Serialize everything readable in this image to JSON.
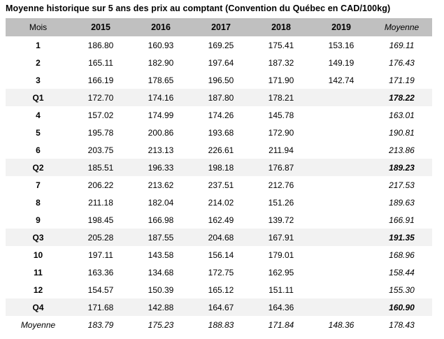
{
  "colors": {
    "page_bg": "#ffffff",
    "text": "#000000",
    "header_bg": "#c0c0c0",
    "quarter_row_bg": "#f2f2f2"
  },
  "chart_data": {
    "type": "table",
    "title": "Moyenne historique sur 5 ans des prix au comptant (Convention du Québec en CAD/100kg)",
    "columns": [
      "Mois",
      "2015",
      "2016",
      "2017",
      "2018",
      "2019",
      "Moyenne"
    ],
    "rows": [
      {
        "label": "1",
        "type": "month",
        "values": [
          "186.80",
          "160.93",
          "169.25",
          "175.41",
          "153.16",
          "169.11"
        ]
      },
      {
        "label": "2",
        "type": "month",
        "values": [
          "165.11",
          "182.90",
          "197.64",
          "187.32",
          "149.19",
          "176.43"
        ]
      },
      {
        "label": "3",
        "type": "month",
        "values": [
          "166.19",
          "178.65",
          "196.50",
          "171.90",
          "142.74",
          "171.19"
        ]
      },
      {
        "label": "Q1",
        "type": "quarter",
        "values": [
          "172.70",
          "174.16",
          "187.80",
          "178.21",
          "",
          "178.22"
        ]
      },
      {
        "label": "4",
        "type": "month",
        "values": [
          "157.02",
          "174.99",
          "174.26",
          "145.78",
          "",
          "163.01"
        ]
      },
      {
        "label": "5",
        "type": "month",
        "values": [
          "195.78",
          "200.86",
          "193.68",
          "172.90",
          "",
          "190.81"
        ]
      },
      {
        "label": "6",
        "type": "month",
        "values": [
          "203.75",
          "213.13",
          "226.61",
          "211.94",
          "",
          "213.86"
        ]
      },
      {
        "label": "Q2",
        "type": "quarter",
        "values": [
          "185.51",
          "196.33",
          "198.18",
          "176.87",
          "",
          "189.23"
        ]
      },
      {
        "label": "7",
        "type": "month",
        "values": [
          "206.22",
          "213.62",
          "237.51",
          "212.76",
          "",
          "217.53"
        ]
      },
      {
        "label": "8",
        "type": "month",
        "values": [
          "211.18",
          "182.04",
          "214.02",
          "151.26",
          "",
          "189.63"
        ]
      },
      {
        "label": "9",
        "type": "month",
        "values": [
          "198.45",
          "166.98",
          "162.49",
          "139.72",
          "",
          "166.91"
        ]
      },
      {
        "label": "Q3",
        "type": "quarter",
        "values": [
          "205.28",
          "187.55",
          "204.68",
          "167.91",
          "",
          "191.35"
        ]
      },
      {
        "label": "10",
        "type": "month",
        "values": [
          "197.11",
          "143.58",
          "156.14",
          "179.01",
          "",
          "168.96"
        ]
      },
      {
        "label": "11",
        "type": "month",
        "values": [
          "163.36",
          "134.68",
          "172.75",
          "162.95",
          "",
          "158.44"
        ]
      },
      {
        "label": "12",
        "type": "month",
        "values": [
          "154.57",
          "150.39",
          "165.12",
          "151.11",
          "",
          "155.30"
        ]
      },
      {
        "label": "Q4",
        "type": "quarter",
        "values": [
          "171.68",
          "142.88",
          "164.67",
          "164.36",
          "",
          "160.90"
        ]
      },
      {
        "label": "Moyenne",
        "type": "average",
        "values": [
          "183.79",
          "175.23",
          "188.83",
          "171.84",
          "148.36",
          "178.43"
        ]
      }
    ]
  }
}
